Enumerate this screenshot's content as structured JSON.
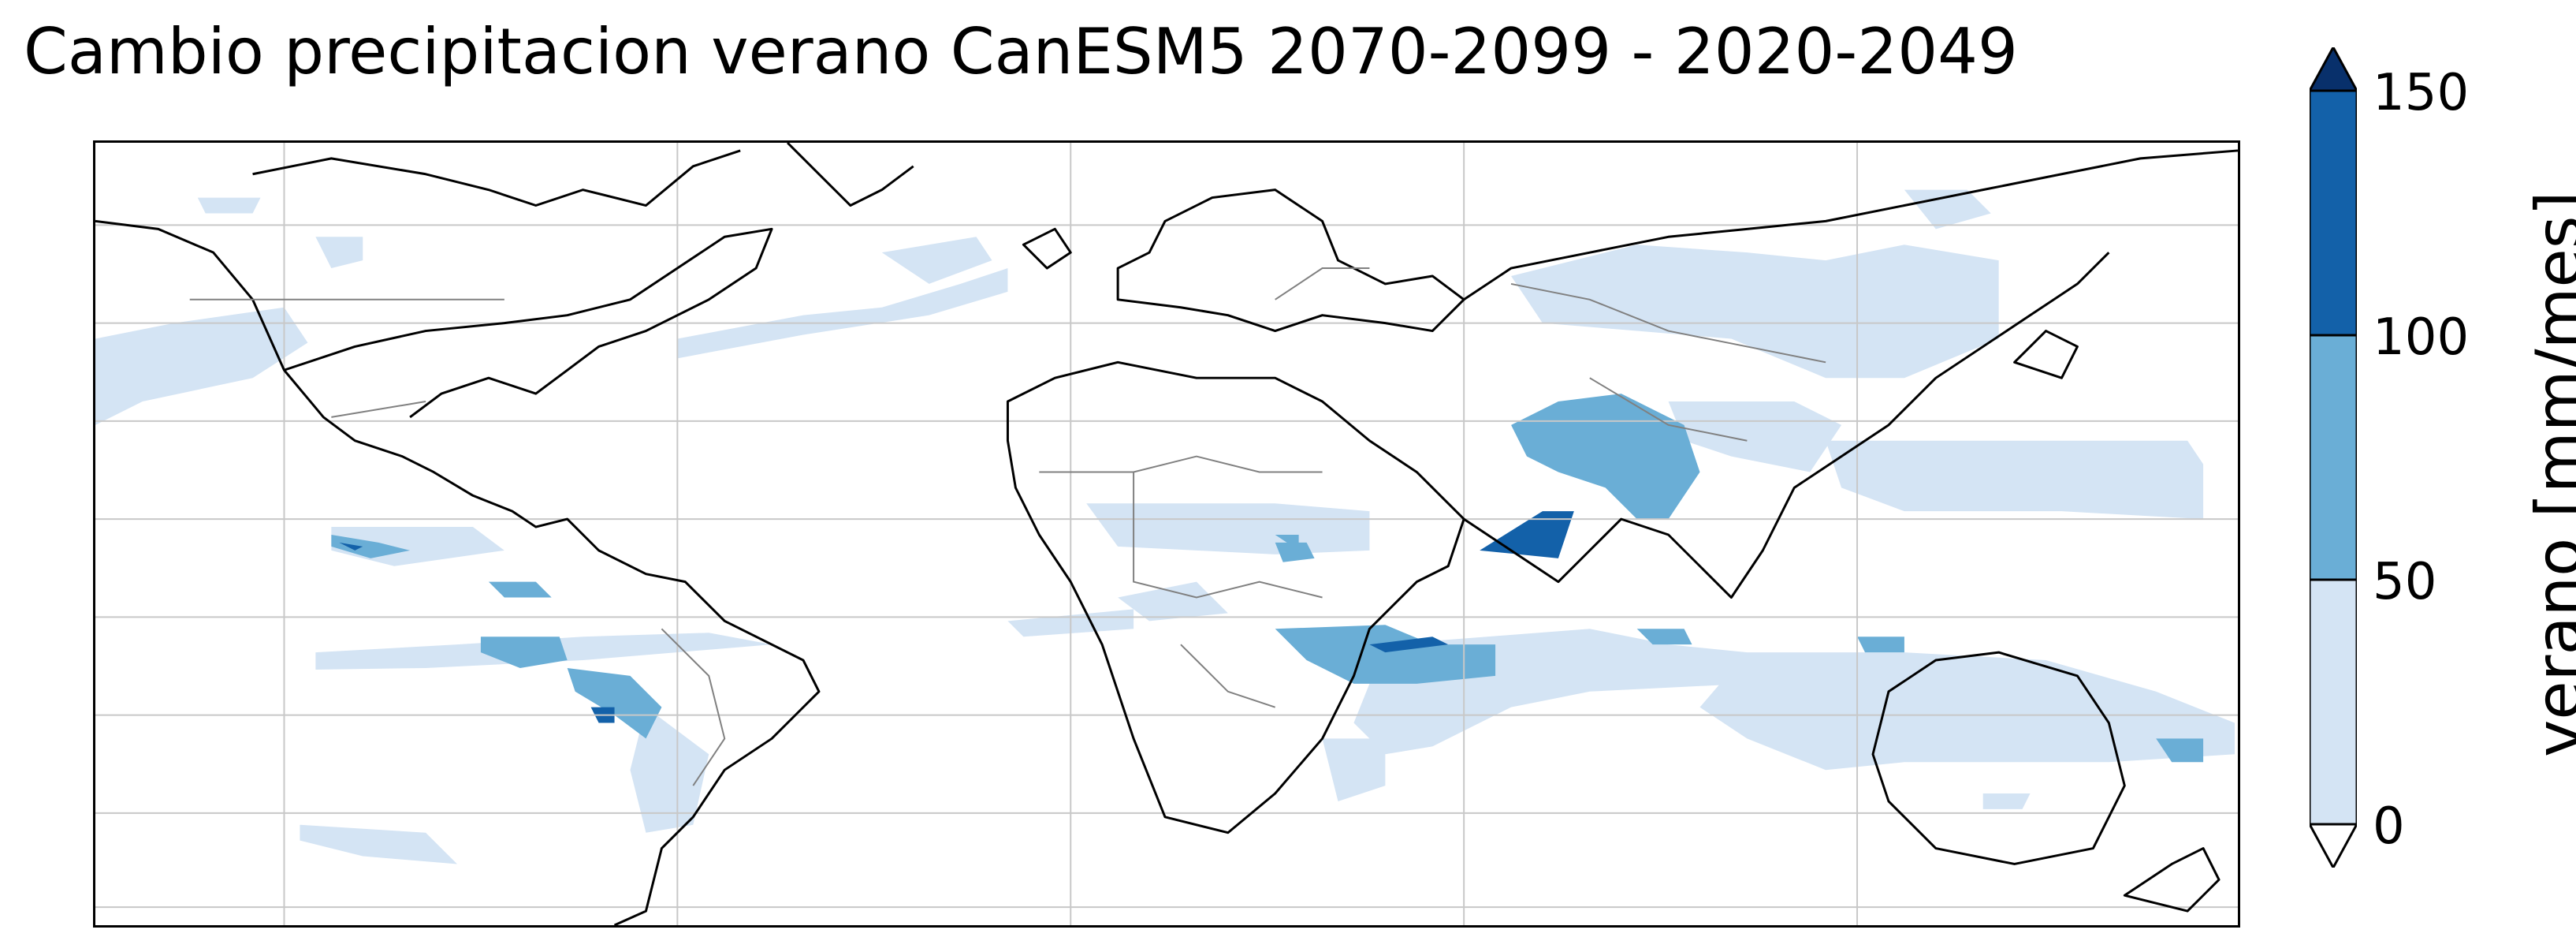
{
  "title": "Cambio precipitacion verano CanESM5 2070-2099 - 2020-2049",
  "colorbar": {
    "label": "verano [mm/mes]",
    "ticks": [
      "0",
      "50",
      "100",
      "150"
    ],
    "levels": [
      0,
      50,
      100,
      150
    ],
    "extend": "both",
    "colors": {
      "under": "#ffffff",
      "0-50": "#d4e4f4",
      "50-100": "#6aaed6",
      "100-150": "#1361a9",
      "over": "#08306b"
    }
  },
  "map": {
    "projection": "plate-carree",
    "gridlines": true,
    "coastline_color": "#000000",
    "border_color": "#808080"
  }
}
